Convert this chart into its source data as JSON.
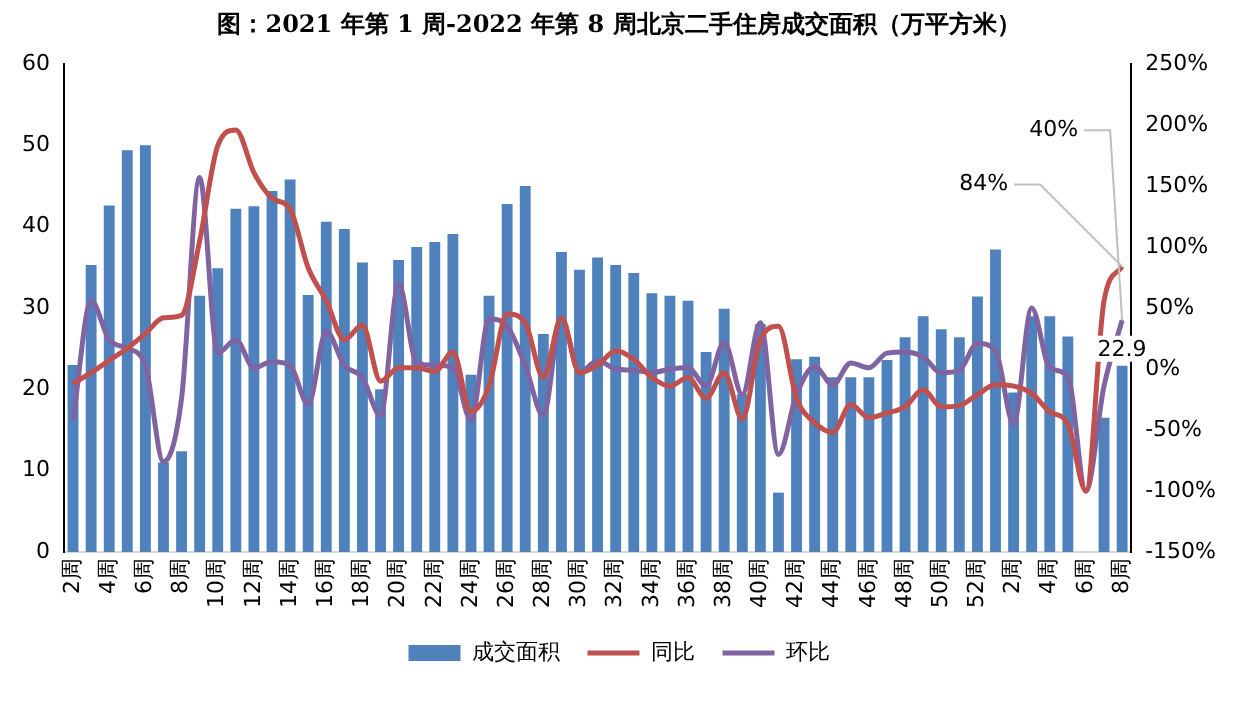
{
  "chart_data": {
    "type": "bar",
    "title": "图：2021 年第 1 周-2022 年第 8 周北京二手住房成交面积（万平方米）",
    "categories": [
      "2周",
      null,
      "4周",
      null,
      "6周",
      null,
      "8周",
      null,
      "10周",
      null,
      "12周",
      null,
      "14周",
      null,
      "16周",
      null,
      "18周",
      null,
      "20周",
      null,
      "22周",
      null,
      "24周",
      null,
      "26周",
      null,
      "28周",
      null,
      "30周",
      null,
      "32周",
      null,
      "34周",
      null,
      "36周",
      null,
      "38周",
      null,
      "40周",
      null,
      "42周",
      null,
      "44周",
      null,
      "46周",
      null,
      "48周",
      null,
      "50周",
      null,
      "52周",
      null,
      "2周",
      null,
      "4周",
      null,
      "6周",
      null,
      "8周"
    ],
    "series": [
      {
        "name": "成交面积",
        "color": "#4f81bd",
        "values": [
          23.0,
          35.3,
          42.6,
          49.4,
          50.0,
          11,
          12.4,
          31.5,
          34.9,
          42.2,
          42.5,
          44.4,
          45.8,
          31.6,
          40.6,
          39.7,
          35.6,
          20,
          35.9,
          37.5,
          38.1,
          39.1,
          21.8,
          31.5,
          42.8,
          45.0,
          26.8,
          36.9,
          34.7,
          36.2,
          35.3,
          34.3,
          31.8,
          31.5,
          30.9,
          24.6,
          29.9,
          19.4,
          28,
          7.3,
          23.7,
          24.0,
          21.5,
          21.5,
          21.5,
          23.6,
          26.4,
          29.0,
          27.4,
          26.4,
          31.4,
          37.2,
          19.6,
          29,
          29.0,
          26.5,
          0,
          16.5,
          22.9
        ],
        "value_labels": [
          null,
          null,
          null,
          null,
          null,
          null,
          null,
          null,
          null,
          null,
          null,
          null,
          null,
          null,
          null,
          null,
          null,
          null,
          null,
          null,
          null,
          null,
          null,
          null,
          null,
          null,
          null,
          null,
          null,
          null,
          null,
          null,
          null,
          null,
          null,
          null,
          null,
          null,
          null,
          null,
          null,
          null,
          null,
          null,
          null,
          null,
          null,
          null,
          null,
          null,
          null,
          null,
          null,
          null,
          null,
          null,
          null,
          null,
          "22.9"
        ]
      },
      {
        "name": "同比",
        "type": "line",
        "axis": "y2",
        "color": "#c0504d",
        "values": [
          -12,
          -3,
          7,
          17,
          29,
          42,
          44,
          105,
          183,
          196,
          161,
          140,
          131,
          83,
          56,
          24,
          36,
          -10,
          1,
          1,
          -2,
          14,
          -35,
          -14,
          45,
          38,
          -7,
          42,
          -3,
          3,
          15,
          8,
          -7,
          -14,
          -7,
          -24,
          -3,
          -41,
          24,
          35,
          -24,
          -44,
          -52,
          -29,
          -40,
          -36,
          -31,
          -17,
          -31,
          -30,
          -21,
          -13,
          -14,
          -20,
          -35,
          -45,
          -100,
          56,
          84
        ],
        "value_labels": [
          null,
          null,
          null,
          null,
          null,
          null,
          null,
          null,
          null,
          null,
          null,
          null,
          null,
          null,
          null,
          null,
          null,
          null,
          null,
          null,
          null,
          null,
          null,
          null,
          null,
          null,
          null,
          null,
          null,
          null,
          null,
          null,
          null,
          null,
          null,
          null,
          null,
          null,
          null,
          null,
          null,
          null,
          null,
          null,
          null,
          null,
          null,
          null,
          null,
          null,
          null,
          null,
          null,
          null,
          null,
          null,
          null,
          null,
          "84%"
        ]
      },
      {
        "name": "环比",
        "type": "line",
        "axis": "y2",
        "color": "#8064a2",
        "values": [
          -42,
          56,
          24,
          17,
          3,
          -76,
          -24,
          157,
          13,
          24,
          1,
          6,
          3,
          -29,
          31,
          3,
          -7,
          -38,
          70,
          5,
          3,
          1,
          -42,
          41,
          35,
          3,
          -38,
          42,
          -3,
          7,
          0,
          -1,
          -3,
          0,
          1,
          -14,
          22,
          -21,
          38,
          -70,
          -21,
          2,
          -13,
          5,
          1,
          13,
          14,
          10,
          -3,
          -1,
          21,
          15,
          -45,
          50,
          1,
          -6,
          -100,
          -14,
          40
        ],
        "value_labels": [
          null,
          null,
          null,
          null,
          null,
          null,
          null,
          null,
          null,
          null,
          null,
          null,
          null,
          null,
          null,
          null,
          null,
          null,
          null,
          null,
          null,
          null,
          null,
          null,
          null,
          null,
          null,
          null,
          null,
          null,
          null,
          null,
          null,
          null,
          null,
          null,
          null,
          null,
          null,
          null,
          null,
          null,
          null,
          null,
          null,
          null,
          null,
          null,
          null,
          null,
          null,
          null,
          null,
          null,
          null,
          null,
          null,
          null,
          "40%"
        ]
      }
    ],
    "ylim": [
      0,
      60
    ],
    "yticks": [
      0,
      10,
      20,
      30,
      40,
      50,
      60
    ],
    "y2lim": [
      -150,
      250
    ],
    "y2ticks": [
      {
        "value": -150,
        "label": "-150%"
      },
      {
        "value": -100,
        "label": "-100%"
      },
      {
        "value": -50,
        "label": "-50%"
      },
      {
        "value": 0,
        "label": "0%"
      },
      {
        "value": 50,
        "label": "50%"
      },
      {
        "value": 100,
        "label": "100%"
      },
      {
        "value": 150,
        "label": "150%"
      },
      {
        "value": 200,
        "label": "200%"
      },
      {
        "value": 250,
        "label": "250%"
      }
    ],
    "legend": "bottom",
    "marker": "none",
    "line_style": "solid"
  }
}
